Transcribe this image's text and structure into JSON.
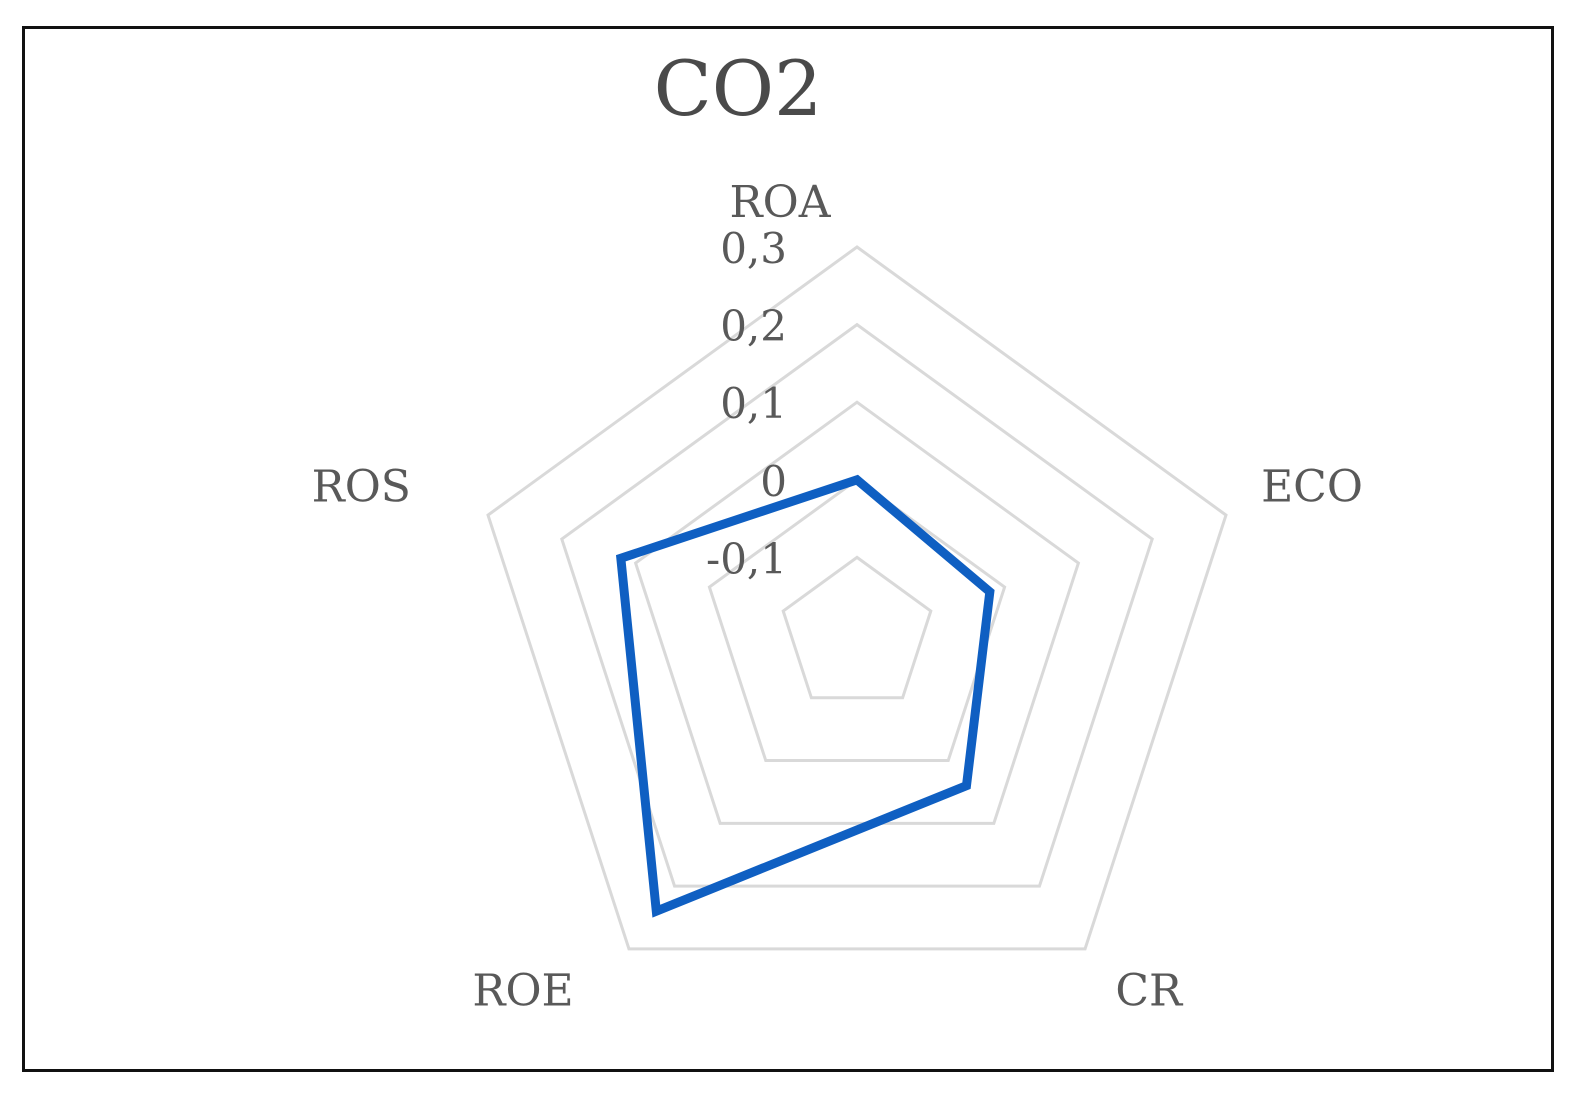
{
  "chart_data": {
    "type": "radar",
    "title": "CO2",
    "categories": [
      "ROA",
      "ECO",
      "CR",
      "ROE",
      "ROS"
    ],
    "ticks": [
      "-0,1",
      "0",
      "0,1",
      "0,2",
      "0,3"
    ],
    "tick_values": [
      -0.1,
      0,
      0.1,
      0.2,
      0.3
    ],
    "range": [
      -0.2,
      0.3
    ],
    "grid": true,
    "legend": "none",
    "series": [
      {
        "values": [
          0.0,
          -0.02,
          0.04,
          0.24,
          0.12
        ],
        "color": "#0f5fc2"
      }
    ]
  }
}
